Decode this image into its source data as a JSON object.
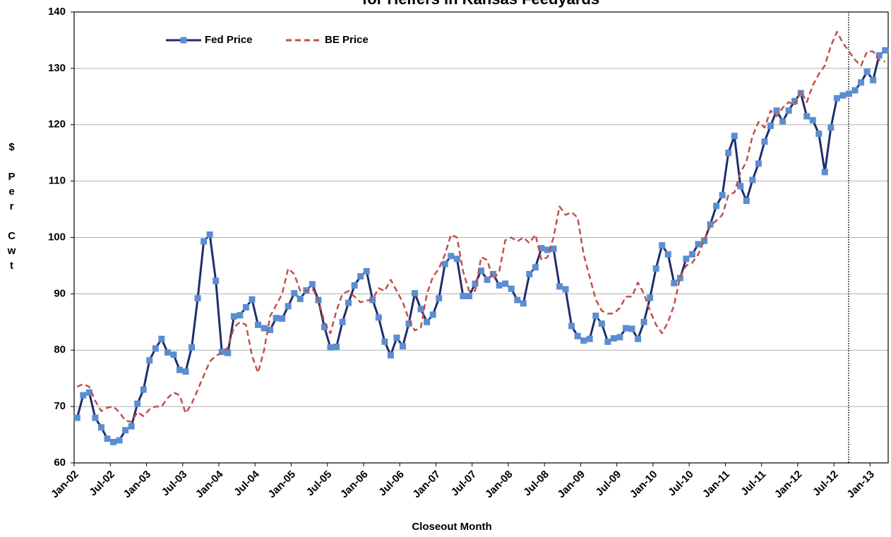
{
  "chart_data": {
    "type": "line",
    "title": "for Heifers in Kansas Feedyards",
    "x_label": "Closeout Month",
    "y_label": "$ Per Cwt",
    "categories": [
      "Jan-02",
      null,
      null,
      null,
      null,
      null,
      "Jul-02",
      null,
      null,
      null,
      null,
      null,
      "Jan-03",
      null,
      null,
      null,
      null,
      null,
      "Jul-03",
      null,
      null,
      null,
      null,
      null,
      "Jan-04",
      null,
      null,
      null,
      null,
      null,
      "Jul-04",
      null,
      null,
      null,
      null,
      null,
      "Jan-05",
      null,
      null,
      null,
      null,
      null,
      "Jul-05",
      null,
      null,
      null,
      null,
      null,
      "Jan-06",
      null,
      null,
      null,
      null,
      null,
      "Jul-06",
      null,
      null,
      null,
      null,
      null,
      "Jan-07",
      null,
      null,
      null,
      null,
      null,
      "Jul-07",
      null,
      null,
      null,
      null,
      null,
      "Jan-08",
      null,
      null,
      null,
      null,
      null,
      "Jul-08",
      null,
      null,
      null,
      null,
      null,
      "Jan-09",
      null,
      null,
      null,
      null,
      null,
      "Jul-09",
      null,
      null,
      null,
      null,
      null,
      "Jan-10",
      null,
      null,
      null,
      null,
      null,
      "Jul-10",
      null,
      null,
      null,
      null,
      null,
      "Jan-11",
      null,
      null,
      null,
      null,
      null,
      "Jul-11",
      null,
      null,
      null,
      null,
      null,
      "Jan-12",
      null,
      null,
      null,
      null,
      null,
      "Jul-12",
      null,
      null,
      null,
      null,
      null,
      "Jan-13",
      null,
      null
    ],
    "series": [
      {
        "name": "Fed Price",
        "color": "#1f2d6b",
        "marker_color": "#5b8ed0",
        "dashed": false,
        "values": [
          68,
          72,
          72.5,
          68,
          66.3,
          64.3,
          63.7,
          64,
          65.8,
          66.5,
          70.5,
          73,
          78.2,
          80.3,
          82,
          79.6,
          79.2,
          76.5,
          76.2,
          80.5,
          89.2,
          99.3,
          100.5,
          92.3,
          79.7,
          79.5,
          86,
          86.2,
          87.6,
          89,
          84.5,
          83.9,
          83.6,
          85.7,
          85.6,
          87.8,
          90.1,
          89.1,
          90.6,
          91.7,
          88.9,
          84.1,
          80.5,
          80.6,
          85,
          88.4,
          91.5,
          93.1,
          94,
          88.9,
          85.8,
          81.5,
          79.1,
          82.2,
          80.7,
          84.7,
          90.1,
          87.3,
          85,
          86.3,
          89.2,
          95.3,
          96.7,
          96.2,
          89.6,
          89.6,
          91.8,
          94.1,
          92.5,
          93.5,
          91.5,
          91.8,
          90.9,
          88.9,
          88.3,
          93.5,
          94.7,
          98.1,
          97.8,
          98,
          91.3,
          90.8,
          84.3,
          82.5,
          81.7,
          82,
          86.1,
          84.7,
          81.5,
          82.1,
          82.3,
          83.9,
          83.8,
          82,
          85,
          89.3,
          94.5,
          98.6,
          97,
          91.9,
          92.8,
          96.2,
          97,
          98.8,
          99.4,
          102.3,
          105.6,
          107.5,
          115,
          118,
          109.1,
          106.5,
          110.2,
          113.1,
          117,
          119.8,
          122.5,
          120.6,
          122.5,
          124.2,
          125.6,
          121.5,
          120.8,
          118.4,
          111.6,
          119.5,
          124.7,
          125.2,
          125.5,
          126.1,
          127.5,
          129.4,
          127.9,
          132.3,
          133.2
        ]
      },
      {
        "name": "BE Price",
        "color": "#c0504d",
        "dashed": true,
        "values": [
          73.5,
          74,
          73.5,
          71,
          69.2,
          69.8,
          70,
          69,
          67.5,
          67.3,
          69,
          68.3,
          69.5,
          70,
          70,
          71.5,
          72.5,
          72,
          68.8,
          70.5,
          73,
          75.5,
          78,
          79,
          79.5,
          80.5,
          84,
          85,
          84.5,
          79,
          76,
          80,
          86,
          88,
          90,
          94.5,
          93.5,
          90.5,
          90.5,
          91,
          89,
          85,
          83,
          87,
          90,
          90.5,
          89.5,
          88.5,
          88.8,
          89,
          91,
          90.5,
          92.5,
          90.5,
          88.5,
          85.5,
          83.5,
          84,
          90,
          93,
          94.5,
          97,
          100.5,
          100,
          94,
          90.5,
          90.5,
          96.5,
          96,
          92.5,
          94,
          99.5,
          100,
          99.3,
          100,
          99,
          100.5,
          96,
          96.5,
          100,
          105.5,
          104,
          104.5,
          103.5,
          97,
          93,
          89,
          87,
          86.5,
          86.5,
          87.5,
          89.5,
          89.5,
          92,
          90,
          87,
          84.5,
          83,
          85,
          88,
          93,
          95,
          95.5,
          97,
          99.5,
          102,
          103,
          104,
          107.5,
          108,
          111.5,
          113.5,
          118,
          120.5,
          119.5,
          122.5,
          121.5,
          123,
          124,
          123.5,
          126,
          124,
          127,
          129,
          130.5,
          134,
          136.5,
          134.5,
          133,
          131.5,
          130.5,
          133,
          133,
          131.5,
          131.2
        ]
      }
    ],
    "ylim": [
      60,
      140
    ],
    "yticks": [
      60,
      70,
      80,
      90,
      100,
      110,
      120,
      130,
      140
    ],
    "grid": true,
    "legend": "upper left"
  }
}
